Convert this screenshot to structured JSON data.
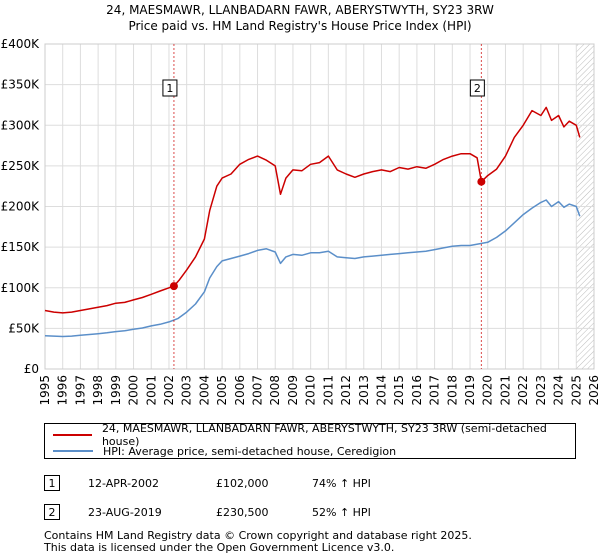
{
  "chart_data": {
    "type": "line",
    "title": "24, MAESMAWR, LLANBADARN FAWR, ABERYSTWYTH, SY23 3RW",
    "subtitle": "Price paid vs. HM Land Registry's House Price Index (HPI)",
    "ylim": [
      0,
      400000
    ],
    "xlim": [
      1995,
      2026
    ],
    "y_ticks": [
      0,
      50000,
      100000,
      150000,
      200000,
      250000,
      300000,
      350000,
      400000
    ],
    "y_tick_labels": [
      "£0",
      "£50K",
      "£100K",
      "£150K",
      "£200K",
      "£250K",
      "£300K",
      "£350K",
      "£400K"
    ],
    "x_ticks": [
      1995,
      1996,
      1997,
      1998,
      1999,
      2000,
      2001,
      2002,
      2003,
      2004,
      2005,
      2006,
      2007,
      2008,
      2009,
      2010,
      2011,
      2012,
      2013,
      2014,
      2015,
      2016,
      2017,
      2018,
      2019,
      2020,
      2021,
      2022,
      2023,
      2024,
      2025,
      2026
    ],
    "grid": true,
    "hatched_after": 2025.0,
    "series": [
      {
        "name": "24, MAESMAWR, LLANBADARN FAWR, ABERYSTWYTH, SY23 3RW (semi-detached house)",
        "color": "#cc0000",
        "x": [
          1995.0,
          1995.5,
          1996.0,
          1996.5,
          1997.0,
          1997.5,
          1998.0,
          1998.5,
          1999.0,
          1999.5,
          2000.0,
          2000.5,
          2001.0,
          2001.5,
          2002.0,
          2002.28,
          2002.6,
          2003.0,
          2003.5,
          2004.0,
          2004.3,
          2004.7,
          2005.0,
          2005.5,
          2006.0,
          2006.5,
          2007.0,
          2007.5,
          2008.0,
          2008.3,
          2008.6,
          2009.0,
          2009.5,
          2010.0,
          2010.5,
          2011.0,
          2011.5,
          2012.0,
          2012.5,
          2013.0,
          2013.5,
          2014.0,
          2014.5,
          2015.0,
          2015.5,
          2016.0,
          2016.5,
          2017.0,
          2017.5,
          2018.0,
          2018.5,
          2019.0,
          2019.4,
          2019.64,
          2020.0,
          2020.5,
          2021.0,
          2021.5,
          2022.0,
          2022.5,
          2023.0,
          2023.3,
          2023.6,
          2024.0,
          2024.3,
          2024.6,
          2025.0,
          2025.2
        ],
        "values": [
          72000,
          70000,
          69000,
          70000,
          72000,
          74000,
          76000,
          78000,
          81000,
          82000,
          85000,
          88000,
          92000,
          96000,
          100000,
          102000,
          110000,
          122000,
          138000,
          160000,
          195000,
          225000,
          235000,
          240000,
          252000,
          258000,
          262000,
          257000,
          250000,
          215000,
          235000,
          245000,
          244000,
          252000,
          254000,
          262000,
          245000,
          240000,
          236000,
          240000,
          243000,
          245000,
          243000,
          248000,
          246000,
          249000,
          247000,
          252000,
          258000,
          262000,
          265000,
          265000,
          260000,
          230500,
          238000,
          246000,
          262000,
          285000,
          300000,
          318000,
          312000,
          322000,
          306000,
          312000,
          298000,
          305000,
          300000,
          285000
        ]
      },
      {
        "name": "HPI: Average price, semi-detached house, Ceredigion",
        "color": "#5b8fc9",
        "x": [
          1995.0,
          1995.5,
          1996.0,
          1996.5,
          1997.0,
          1997.5,
          1998.0,
          1998.5,
          1999.0,
          1999.5,
          2000.0,
          2000.5,
          2001.0,
          2001.5,
          2002.0,
          2002.5,
          2003.0,
          2003.5,
          2004.0,
          2004.3,
          2004.7,
          2005.0,
          2005.5,
          2006.0,
          2006.5,
          2007.0,
          2007.5,
          2008.0,
          2008.3,
          2008.6,
          2009.0,
          2009.5,
          2010.0,
          2010.5,
          2011.0,
          2011.5,
          2012.0,
          2012.5,
          2013.0,
          2013.5,
          2014.0,
          2014.5,
          2015.0,
          2015.5,
          2016.0,
          2016.5,
          2017.0,
          2017.5,
          2018.0,
          2018.5,
          2019.0,
          2019.5,
          2020.0,
          2020.5,
          2021.0,
          2021.5,
          2022.0,
          2022.5,
          2023.0,
          2023.3,
          2023.6,
          2024.0,
          2024.3,
          2024.6,
          2025.0,
          2025.2
        ],
        "values": [
          41000,
          40500,
          40000,
          40500,
          41500,
          42500,
          43500,
          44500,
          46000,
          47000,
          49000,
          50500,
          53000,
          55000,
          58000,
          62000,
          70000,
          80000,
          95000,
          112000,
          126000,
          133000,
          136000,
          139000,
          142000,
          146000,
          148000,
          144000,
          130000,
          138000,
          141000,
          140000,
          143000,
          143000,
          145000,
          138000,
          137000,
          136000,
          138000,
          139000,
          140000,
          141000,
          142000,
          143000,
          144000,
          145000,
          147000,
          149000,
          151000,
          152000,
          152000,
          154000,
          156000,
          162000,
          170000,
          180000,
          190000,
          198000,
          205000,
          208000,
          200000,
          206000,
          199000,
          203000,
          200000,
          188000
        ]
      }
    ],
    "transactions": [
      {
        "label": "1",
        "x": 2002.28,
        "value": 102000,
        "date": "12-APR-2002",
        "price": "£102,000",
        "hpi": "74% ↑ HPI"
      },
      {
        "label": "2",
        "x": 2019.64,
        "value": 230500,
        "date": "23-AUG-2019",
        "price": "£230,500",
        "hpi": "52% ↑ HPI"
      }
    ]
  },
  "legend": {
    "property_label": "24, MAESMAWR, LLANBADARN FAWR, ABERYSTWYTH, SY23 3RW (semi-detached house)",
    "hpi_label": "HPI: Average price, semi-detached house, Ceredigion"
  },
  "footer": {
    "line1": "Contains HM Land Registry data © Crown copyright and database right 2025.",
    "line2": "This data is licensed under the Open Government Licence v3.0."
  }
}
